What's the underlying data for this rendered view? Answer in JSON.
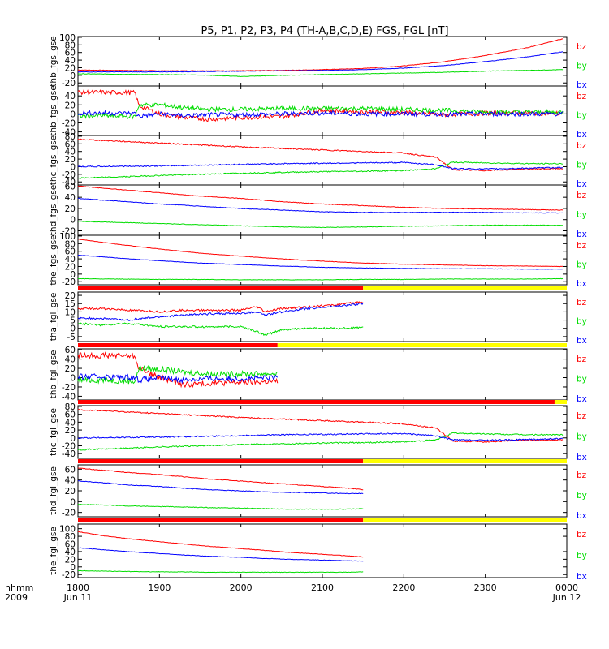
{
  "title": "P5, P1, P2, P3, P4 (TH-A,B,C,D,E) FGS, FGL [nT]",
  "colors": {
    "bx": "#0000ff",
    "by": "#00dd00",
    "bz": "#ff0000",
    "bar_red": "#ff0000",
    "bar_yellow": "#ffff00",
    "axis": "#000000"
  },
  "time_axis": {
    "row_label_1": "hhmm",
    "row_label_2": "2009",
    "ticks": [
      "1800",
      "1900",
      "2000",
      "2100",
      "2200",
      "2300",
      "0000"
    ],
    "start_date": "Jun 11",
    "end_date": "Jun 12"
  },
  "chart_data": [
    {
      "type": "line",
      "ylabel": "thb_fgs_gse",
      "ylim": [
        -28,
        102
      ],
      "yticks": [
        "100",
        "80",
        "60",
        "40",
        "20",
        "0",
        "-20"
      ],
      "ytick_values": [
        100,
        80,
        60,
        40,
        20,
        0,
        -20
      ],
      "legend": [
        "bz",
        "by",
        "bx"
      ],
      "x_hours": [
        18.0,
        18.5,
        19.0,
        19.5,
        20.0,
        20.5,
        21.0,
        21.5,
        22.0,
        22.5,
        23.0,
        23.5,
        23.95
      ],
      "noise": 0.6,
      "series": [
        {
          "name": "bz",
          "values": [
            14,
            13,
            12,
            12,
            12,
            13,
            15,
            18,
            25,
            36,
            52,
            72,
            96
          ]
        },
        {
          "name": "by",
          "values": [
            4,
            3,
            2,
            1,
            -3,
            0,
            2,
            4,
            6,
            8,
            11,
            13,
            15
          ]
        },
        {
          "name": "bx",
          "values": [
            9,
            9,
            9,
            10,
            11,
            12,
            13,
            15,
            19,
            26,
            36,
            48,
            62
          ]
        }
      ]
    },
    {
      "type": "line",
      "ylabel": "thb_fgs_gse",
      "ylim": [
        -48,
        62
      ],
      "yticks": [
        "40",
        "20",
        "0",
        "-20",
        "-40"
      ],
      "ytick_values": [
        40,
        20,
        0,
        -20,
        -40
      ],
      "legend": [
        "bz",
        "by",
        "bx"
      ],
      "x_hours": [
        18.0,
        18.3,
        18.7,
        18.75,
        19.0,
        19.3,
        19.6,
        20.0,
        20.5,
        21.0,
        21.5,
        22.0,
        22.5,
        23.0,
        23.5,
        23.95
      ],
      "noise": 5,
      "series": [
        {
          "name": "bz",
          "values": [
            48,
            48,
            47,
            18,
            0,
            -8,
            -12,
            -8,
            -6,
            8,
            5,
            3,
            -2,
            2,
            2,
            1
          ]
        },
        {
          "name": "by",
          "values": [
            -5,
            -4,
            -6,
            20,
            20,
            14,
            10,
            10,
            12,
            12,
            12,
            10,
            8,
            4,
            4,
            4
          ]
        },
        {
          "name": "bx",
          "values": [
            2,
            2,
            1,
            -5,
            0,
            -4,
            -2,
            -2,
            0,
            2,
            0,
            0,
            -1,
            0,
            0,
            0
          ]
        }
      ]
    },
    {
      "type": "line",
      "ylabel": "thc_fgs_gse",
      "ylim": [
        -48,
        82
      ],
      "yticks": [
        "80",
        "60",
        "40",
        "20",
        "0",
        "-20",
        "-40"
      ],
      "ytick_values": [
        80,
        60,
        40,
        20,
        0,
        -20,
        -40
      ],
      "legend": [
        "bz",
        "by",
        "bx"
      ],
      "x_hours": [
        18.0,
        18.5,
        19.0,
        19.5,
        20.0,
        20.5,
        21.0,
        21.5,
        22.0,
        22.2,
        22.4,
        22.6,
        23.0,
        23.5,
        23.95
      ],
      "noise": 1.5,
      "series": [
        {
          "name": "bz",
          "values": [
            72,
            67,
            62,
            57,
            52,
            48,
            44,
            40,
            36,
            30,
            25,
            -8,
            -10,
            -6,
            -5
          ]
        },
        {
          "name": "by",
          "values": [
            -30,
            -27,
            -23,
            -20,
            -17,
            -15,
            -13,
            -12,
            -10,
            -8,
            -5,
            12,
            10,
            8,
            8
          ]
        },
        {
          "name": "bx",
          "values": [
            0,
            1,
            2,
            4,
            6,
            8,
            9,
            10,
            11,
            8,
            5,
            -5,
            -6,
            -4,
            -2
          ]
        }
      ]
    },
    {
      "type": "line",
      "ylabel": "thd_fgs_gse",
      "ylim": [
        -28,
        62
      ],
      "yticks": [
        "60",
        "40",
        "20",
        "0",
        "-20"
      ],
      "ytick_values": [
        60,
        40,
        20,
        0,
        -20
      ],
      "legend": [
        "bz",
        "by",
        "bx"
      ],
      "x_hours": [
        18.0,
        18.5,
        19.0,
        19.5,
        20.0,
        20.5,
        21.0,
        21.5,
        22.0,
        22.5,
        23.0,
        23.5,
        23.95
      ],
      "noise": 0.5,
      "series": [
        {
          "name": "bz",
          "values": [
            60,
            54,
            48,
            42,
            38,
            32,
            28,
            25,
            22,
            20,
            19,
            18,
            17
          ]
        },
        {
          "name": "by",
          "values": [
            -3,
            -5,
            -7,
            -9,
            -11,
            -13,
            -14,
            -13,
            -12,
            -11,
            -10,
            -10,
            -10
          ]
        },
        {
          "name": "bx",
          "values": [
            38,
            33,
            28,
            24,
            20,
            17,
            14,
            13,
            13,
            13,
            13,
            12,
            12
          ]
        }
      ]
    },
    {
      "type": "line",
      "ylabel": "the_fgs_gse",
      "ylim": [
        -28,
        102
      ],
      "yticks": [
        "100",
        "80",
        "60",
        "40",
        "20",
        "0",
        "-20"
      ],
      "ytick_values": [
        100,
        80,
        60,
        40,
        20,
        0,
        -20
      ],
      "legend": [
        "bz",
        "by",
        "bx"
      ],
      "x_hours": [
        18.0,
        18.5,
        19.0,
        19.5,
        20.0,
        20.5,
        21.0,
        21.5,
        22.0,
        22.5,
        23.0,
        23.5,
        23.95
      ],
      "noise": 0.5,
      "series": [
        {
          "name": "bz",
          "values": [
            92,
            78,
            66,
            55,
            47,
            40,
            34,
            29,
            26,
            24,
            22,
            21,
            20
          ]
        },
        {
          "name": "by",
          "values": [
            -12,
            -13,
            -14,
            -14,
            -15,
            -15,
            -15,
            -14,
            -14,
            -13,
            -13,
            -13,
            -12
          ]
        },
        {
          "name": "bx",
          "values": [
            50,
            42,
            35,
            29,
            25,
            21,
            18,
            16,
            15,
            14,
            14,
            13,
            13
          ]
        }
      ]
    },
    {
      "type": "line",
      "ylabel": "tha_fgl_gse",
      "ylim": [
        -8,
        22
      ],
      "yticks": [
        "20",
        "15",
        "10",
        "5",
        "0",
        "-5"
      ],
      "ytick_values": [
        20,
        15,
        10,
        5,
        0,
        -5
      ],
      "legend": [
        "bz",
        "by",
        "bx"
      ],
      "bar": {
        "red_until_hour": 21.5
      },
      "x_hours": [
        18.0,
        18.3,
        18.6,
        19.0,
        19.3,
        19.7,
        20.0,
        20.2,
        20.3,
        20.5,
        20.8,
        21.1,
        21.3,
        21.5
      ],
      "noise": 0.6,
      "series": [
        {
          "name": "bz",
          "values": [
            12,
            12,
            11,
            10,
            11,
            11,
            11,
            13,
            10,
            12,
            13,
            14,
            15,
            16
          ]
        },
        {
          "name": "by",
          "values": [
            3,
            2,
            3,
            1,
            1,
            1,
            1,
            -2,
            -4,
            -1,
            0,
            0,
            0,
            0.5
          ]
        },
        {
          "name": "bx",
          "values": [
            6,
            6,
            5,
            7,
            8,
            9,
            9,
            10,
            8,
            10,
            12,
            13,
            14,
            15
          ]
        }
      ]
    },
    {
      "type": "line",
      "ylabel": "thb_fgl_gse",
      "ylim": [
        -48,
        62
      ],
      "yticks": [
        "60",
        "40",
        "20",
        "0",
        "-20",
        "-40"
      ],
      "ytick_values": [
        60,
        40,
        20,
        0,
        -20,
        -40
      ],
      "legend": [
        "bz",
        "by",
        "bx"
      ],
      "bar": {
        "red_until_hour": 20.45
      },
      "x_hours": [
        18.0,
        18.3,
        18.7,
        18.75,
        19.0,
        19.3,
        19.6,
        20.0,
        20.45
      ],
      "noise": 6,
      "series": [
        {
          "name": "bz",
          "values": [
            48,
            48,
            47,
            20,
            0,
            -15,
            -12,
            -10,
            -8
          ]
        },
        {
          "name": "by",
          "values": [
            -6,
            -5,
            -8,
            20,
            18,
            12,
            8,
            8,
            9
          ]
        },
        {
          "name": "bx",
          "values": [
            2,
            2,
            1,
            -5,
            0,
            -5,
            -2,
            -2,
            0
          ]
        }
      ]
    },
    {
      "type": "line",
      "ylabel": "thc_fgl_gse",
      "ylim": [
        -52,
        82
      ],
      "yticks": [
        "80",
        "60",
        "40",
        "20",
        "0",
        "-20",
        "-40"
      ],
      "ytick_values": [
        80,
        60,
        40,
        20,
        0,
        -20,
        -40
      ],
      "legend": [
        "bz",
        "by",
        "bx"
      ],
      "bar": {
        "red_until_hour": 23.85
      },
      "x_hours": [
        18.0,
        18.5,
        19.0,
        19.5,
        20.0,
        20.5,
        21.0,
        21.5,
        22.0,
        22.2,
        22.4,
        22.6,
        23.0,
        23.5,
        23.95
      ],
      "noise": 1.6,
      "series": [
        {
          "name": "bz",
          "values": [
            72,
            67,
            62,
            57,
            52,
            48,
            44,
            40,
            36,
            30,
            25,
            -8,
            -10,
            -6,
            -5
          ]
        },
        {
          "name": "by",
          "values": [
            -30,
            -27,
            -23,
            -20,
            -17,
            -15,
            -13,
            -12,
            -10,
            -8,
            -5,
            12,
            10,
            8,
            8
          ]
        },
        {
          "name": "bx",
          "values": [
            0,
            1,
            2,
            4,
            6,
            8,
            9,
            10,
            11,
            8,
            5,
            -5,
            -6,
            -4,
            -2
          ]
        }
      ]
    },
    {
      "type": "line",
      "ylabel": "thd_fgl_gse",
      "ylim": [
        -28,
        68
      ],
      "yticks": [
        "60",
        "40",
        "20",
        "0",
        "-20"
      ],
      "ytick_values": [
        60,
        40,
        20,
        0,
        -20
      ],
      "legend": [
        "bz",
        "by",
        "bx"
      ],
      "bar": {
        "red_until_hour": 21.5
      },
      "x_hours": [
        18.0,
        18.3,
        18.6,
        19.0,
        19.3,
        19.6,
        20.0,
        20.3,
        20.6,
        21.0,
        21.3,
        21.5
      ],
      "noise": 0.6,
      "series": [
        {
          "name": "bz",
          "values": [
            62,
            58,
            54,
            50,
            46,
            42,
            38,
            35,
            32,
            28,
            25,
            22
          ]
        },
        {
          "name": "by",
          "values": [
            -5,
            -6,
            -8,
            -9,
            -10,
            -11,
            -12,
            -13,
            -14,
            -14,
            -14,
            -13
          ]
        },
        {
          "name": "bx",
          "values": [
            38,
            35,
            31,
            28,
            25,
            22,
            20,
            18,
            17,
            16,
            15,
            15
          ]
        }
      ]
    },
    {
      "type": "line",
      "ylabel": "the_fgl_gse",
      "ylim": [
        -28,
        112
      ],
      "yticks": [
        "100",
        "80",
        "60",
        "40",
        "20",
        "0",
        "-20"
      ],
      "ytick_values": [
        100,
        80,
        60,
        40,
        20,
        0,
        -20
      ],
      "legend": [
        "bz",
        "by",
        "bx"
      ],
      "bar": {
        "red_until_hour": 21.5
      },
      "x_hours": [
        18.0,
        18.3,
        18.6,
        19.0,
        19.3,
        19.6,
        20.0,
        20.3,
        20.6,
        21.0,
        21.3,
        21.5
      ],
      "noise": 0.6,
      "series": [
        {
          "name": "bz",
          "values": [
            92,
            82,
            74,
            66,
            60,
            54,
            48,
            43,
            38,
            33,
            29,
            26
          ]
        },
        {
          "name": "by",
          "values": [
            -10,
            -11,
            -12,
            -13,
            -13,
            -14,
            -14,
            -14,
            -14,
            -14,
            -14,
            -13
          ]
        },
        {
          "name": "bx",
          "values": [
            50,
            45,
            40,
            35,
            31,
            28,
            25,
            22,
            20,
            18,
            16,
            15
          ]
        }
      ]
    }
  ]
}
